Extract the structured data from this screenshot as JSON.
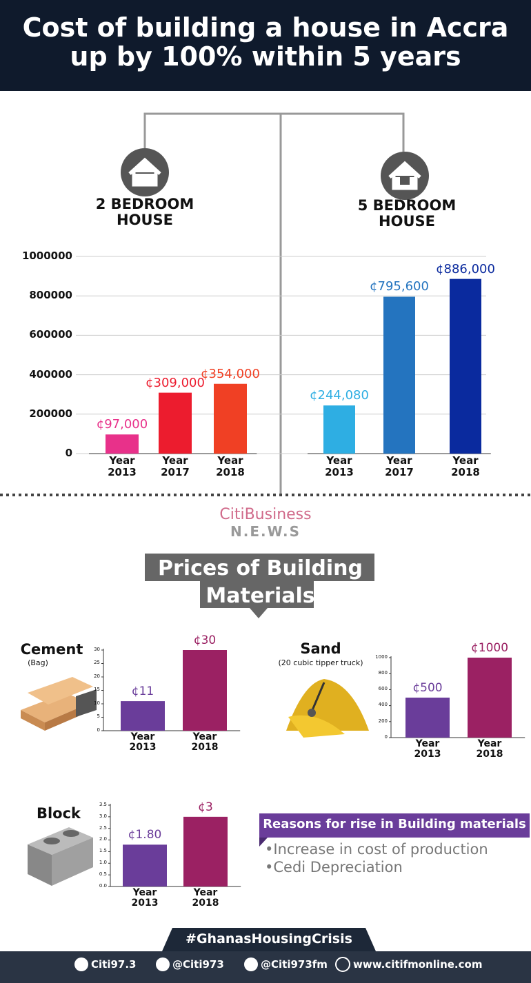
{
  "header": {
    "title": "Cost of building a house in Accra up by 100% within 5 years"
  },
  "chart_data": [
    {
      "type": "bar",
      "title": "2 BEDROOM HOUSE",
      "categories": [
        "Year 2013",
        "Year 2017",
        "Year 2018"
      ],
      "values": [
        97000,
        309000,
        354000
      ],
      "value_labels": [
        "¢97,000",
        "¢309,000",
        "¢354,000"
      ],
      "colors": [
        "#e8318a",
        "#ec1c2e",
        "#f04024"
      ],
      "ylim": [
        0,
        1000000
      ],
      "yticks": [
        0,
        200000,
        400000,
        600000,
        800000,
        1000000
      ],
      "grid": true
    },
    {
      "type": "bar",
      "title": "5 BEDROOM HOUSE",
      "categories": [
        "Year 2013",
        "Year 2017",
        "Year 2018"
      ],
      "values": [
        244080,
        795600,
        886000
      ],
      "value_labels": [
        "¢244,080",
        "¢795,600",
        "¢886,000"
      ],
      "colors": [
        "#2eaee3",
        "#2474bf",
        "#0a2a9e"
      ],
      "ylim": [
        0,
        1000000
      ]
    },
    {
      "type": "bar",
      "title": "Cement",
      "subtitle": "(Bag)",
      "categories": [
        "Year 2013",
        "Year 2018"
      ],
      "values": [
        11,
        30
      ],
      "value_labels": [
        "¢11",
        "¢30"
      ],
      "colors": [
        "#6a3d9a",
        "#9b2163"
      ],
      "ylim": [
        0,
        30
      ],
      "yticks": [
        0,
        5,
        10,
        15,
        20,
        25,
        30
      ],
      "grid": false
    },
    {
      "type": "bar",
      "title": "Sand",
      "subtitle": "(20 cubic tipper truck)",
      "categories": [
        "Year 2013",
        "Year 2018"
      ],
      "values": [
        500,
        1000
      ],
      "value_labels": [
        "¢500",
        "¢1000"
      ],
      "colors": [
        "#6a3d9a",
        "#9b2163"
      ],
      "ylim": [
        0,
        1000
      ],
      "yticks": [
        0,
        200,
        400,
        600,
        800,
        1000
      ],
      "grid": false
    },
    {
      "type": "bar",
      "title": "Block",
      "categories": [
        "Year 2013",
        "Year 2018"
      ],
      "values": [
        1.8,
        3
      ],
      "value_labels": [
        "¢1.80",
        "¢3"
      ],
      "colors": [
        "#6a3d9a",
        "#9b2163"
      ],
      "ylim": [
        0,
        3.5
      ],
      "yticks": [
        {
          "value": 0,
          "label": "0.0"
        },
        0.5,
        {
          "value": 1,
          "label": "1.0"
        },
        1.5,
        {
          "value": 2,
          "label": "2.0"
        },
        2.5,
        {
          "value": 3,
          "label": "3.0"
        },
        3.5
      ],
      "grid": false
    }
  ],
  "logo": {
    "name": "CitiBusiness",
    "sub": "N.E.W.S"
  },
  "section_title": "Prices of Building Materials",
  "reasons": {
    "title": "Reasons for rise in Building materials",
    "items": [
      "•Increase in cost of production",
      "•Cedi Depreciation"
    ]
  },
  "hashtag": "#GhanasHousingCrisis",
  "footer": [
    "Citi97.3",
    "@Citi973",
    "@Citi973fm",
    "www.citifmonline.com"
  ]
}
